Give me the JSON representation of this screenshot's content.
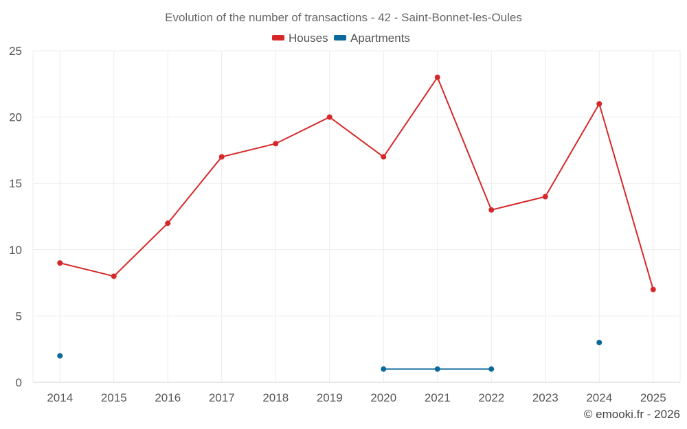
{
  "chart_data": {
    "type": "line",
    "title": "Evolution of the number of transactions - 42 - Saint-Bonnet-les-Oules",
    "categories": [
      "2014",
      "2015",
      "2016",
      "2017",
      "2018",
      "2019",
      "2020",
      "2021",
      "2022",
      "2023",
      "2024",
      "2025"
    ],
    "series": [
      {
        "name": "Houses",
        "color": "#d62828",
        "values": [
          9,
          8,
          12,
          17,
          18,
          20,
          17,
          23,
          13,
          14,
          21,
          7
        ]
      },
      {
        "name": "Apartments",
        "color": "#0b6a9c",
        "values": [
          2,
          null,
          null,
          null,
          null,
          null,
          1,
          1,
          1,
          null,
          3,
          null
        ]
      }
    ],
    "ylim": [
      0,
      25
    ],
    "yticks": [
      0,
      5,
      10,
      15,
      20,
      25
    ],
    "grid": true,
    "legend": "top-center",
    "xlabel": "",
    "ylabel": ""
  },
  "credit": "© emooki.fr - 2026"
}
